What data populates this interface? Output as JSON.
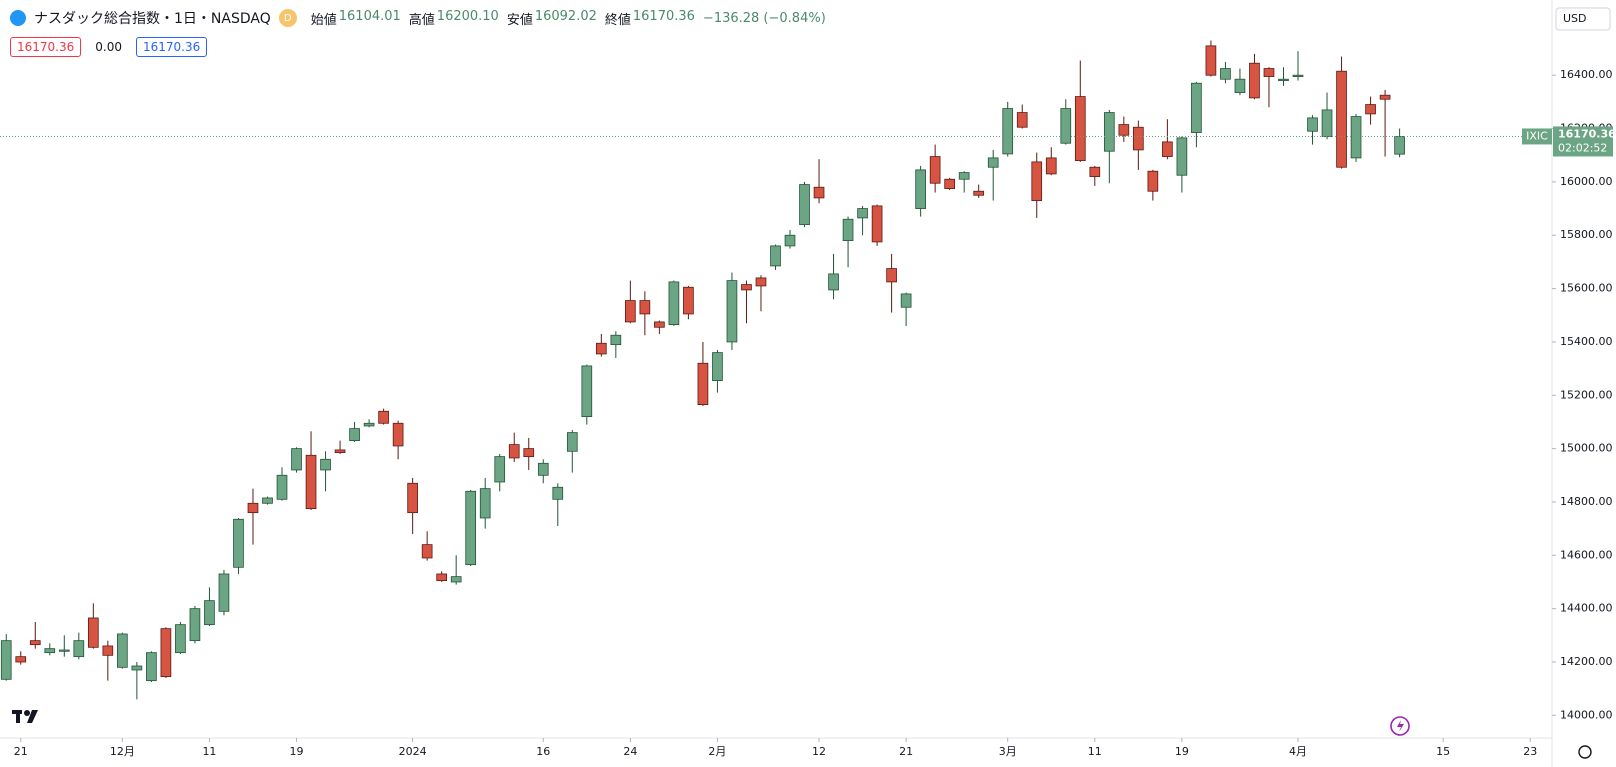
{
  "header": {
    "title": "ナスダック総合指数・1日・NASDAQ",
    "interval": "D",
    "ohlc": [
      {
        "label": "始値",
        "value": "16104.01"
      },
      {
        "label": "高値",
        "value": "16200.10"
      },
      {
        "label": "安値",
        "value": "16092.02"
      },
      {
        "label": "終値",
        "value": "16170.36"
      }
    ],
    "change": "−136.28 (−0.84%)",
    "price_boxes": [
      "16170.36",
      "0.00",
      "16170.36"
    ]
  },
  "currency": "USD",
  "symbol_tag": "IXIC",
  "price_tag": "16170.36",
  "countdown": "02:02:52",
  "chart_data": {
    "type": "candlestick",
    "up_color": "#6ba583",
    "down_color": "#d75442",
    "up_border": "#225437",
    "down_border": "#5b1a13",
    "grid": false,
    "open": [
      14135,
      14220,
      14280,
      14235,
      14240,
      14220,
      14365,
      14260,
      14180,
      14170,
      14130,
      14325,
      14235,
      14280,
      14340,
      14390,
      14555,
      14795,
      14795,
      14810,
      14920,
      14975,
      14920,
      14995,
      15030,
      15085,
      15140,
      15095,
      14870,
      14640,
      14530,
      14500,
      14565,
      14740,
      14875,
      15015,
      15000,
      14900,
      14810,
      14990,
      15120,
      15395,
      15390,
      15555,
      15555,
      15475,
      15465,
      15605,
      15320,
      15255,
      15400,
      15615,
      15640,
      15685,
      15760,
      15840,
      15980,
      15595,
      15780,
      15865,
      15910,
      15675,
      15530,
      15900,
      16095,
      16010,
      16010,
      15965,
      16055,
      16105,
      16260,
      16075,
      16090,
      16145,
      16320,
      16055,
      16115,
      16215,
      16205,
      16040,
      16150,
      16025,
      16185,
      16510,
      16385,
      16335,
      16445,
      16425,
      16380,
      16395,
      16190,
      16170,
      16415,
      16090,
      16290,
      16325,
      16104.01
    ],
    "high": [
      14305,
      14240,
      14350,
      14270,
      14300,
      14310,
      14420,
      14280,
      14310,
      14200,
      14240,
      14330,
      14350,
      14410,
      14480,
      14545,
      14740,
      14850,
      14820,
      14930,
      15005,
      15065,
      14990,
      15030,
      15100,
      15110,
      15150,
      15105,
      14890,
      14690,
      14540,
      14600,
      14845,
      14890,
      14980,
      15060,
      15040,
      14960,
      14870,
      15070,
      15315,
      15430,
      15440,
      15630,
      15590,
      15480,
      15630,
      15610,
      15400,
      15370,
      15660,
      15630,
      15650,
      15765,
      15820,
      16000,
      16085,
      15730,
      15870,
      15910,
      15915,
      15730,
      15585,
      16060,
      16140,
      16015,
      16040,
      15990,
      16120,
      16300,
      16290,
      16110,
      16130,
      16310,
      16455,
      16060,
      16270,
      16245,
      16230,
      16045,
      16235,
      16170,
      16375,
      16530,
      16450,
      16425,
      16480,
      16430,
      16430,
      16490,
      16250,
      16335,
      16470,
      16255,
      16320,
      16345,
      16200.1
    ],
    "low": [
      14130,
      14190,
      14250,
      14225,
      14220,
      14210,
      14250,
      14130,
      14175,
      14060,
      14125,
      14140,
      14230,
      14270,
      14335,
      14375,
      14530,
      14640,
      14790,
      14805,
      14910,
      14770,
      14840,
      14980,
      15025,
      15080,
      15090,
      14960,
      14680,
      14580,
      14500,
      14490,
      14560,
      14700,
      14840,
      14950,
      14920,
      14870,
      14710,
      14910,
      15090,
      15345,
      15340,
      15470,
      15425,
      15430,
      15460,
      15485,
      15160,
      15210,
      15370,
      15470,
      15515,
      15670,
      15750,
      15830,
      15920,
      15560,
      15680,
      15800,
      15760,
      15510,
      15460,
      15870,
      15960,
      15970,
      15960,
      15940,
      15930,
      16095,
      16200,
      15865,
      16025,
      16140,
      16075,
      15985,
      15995,
      16150,
      16045,
      15930,
      16085,
      15960,
      16130,
      16395,
      16370,
      16325,
      16310,
      16280,
      16360,
      16380,
      16140,
      16160,
      16050,
      16075,
      16215,
      16095,
      16092.02
    ],
    "close": [
      14280,
      14200,
      14265,
      14250,
      14245,
      14280,
      14255,
      14225,
      14305,
      14185,
      14235,
      14145,
      14340,
      14400,
      14430,
      14530,
      14735,
      14760,
      14815,
      14900,
      15000,
      14775,
      14960,
      14985,
      15075,
      15095,
      15095,
      15010,
      14760,
      14590,
      14505,
      14520,
      14840,
      14850,
      14970,
      14965,
      14970,
      14945,
      14855,
      15060,
      15310,
      15355,
      15425,
      15475,
      15505,
      15455,
      15625,
      15505,
      15165,
      15360,
      15630,
      15595,
      15610,
      15760,
      15800,
      15990,
      15940,
      15655,
      15860,
      15900,
      15775,
      15625,
      15580,
      16045,
      15995,
      15975,
      16035,
      15950,
      16090,
      16275,
      16205,
      15930,
      16030,
      16275,
      16080,
      16020,
      16260,
      16175,
      16120,
      15965,
      16095,
      16165,
      16370,
      16400,
      16425,
      16385,
      16315,
      16395,
      16385,
      16400,
      16240,
      16270,
      16055,
      16245,
      16255,
      16310,
      16170.36
    ],
    "xlim": [
      -0.43,
      106.5
    ],
    "ylim": [
      13915,
      16682
    ],
    "yticks": [
      {
        "value": 14000,
        "label": "14000.00"
      },
      {
        "value": 14200,
        "label": "14200.00"
      },
      {
        "value": 14400,
        "label": "14400.00"
      },
      {
        "value": 14600,
        "label": "14600.00"
      },
      {
        "value": 14800,
        "label": "14800.00"
      },
      {
        "value": 15000,
        "label": "15000.00"
      },
      {
        "value": 15200,
        "label": "15200.00"
      },
      {
        "value": 15400,
        "label": "15400.00"
      },
      {
        "value": 15600,
        "label": "15600.00"
      },
      {
        "value": 15800,
        "label": "15800.00"
      },
      {
        "value": 16000,
        "label": "16000.00"
      },
      {
        "value": 16200,
        "label": "16200.00"
      },
      {
        "value": 16400,
        "label": "16400.00"
      }
    ],
    "xticks": [
      {
        "value": 1,
        "label": "21"
      },
      {
        "value": 8,
        "label": "12月"
      },
      {
        "value": 14,
        "label": "11"
      },
      {
        "value": 20,
        "label": "19"
      },
      {
        "value": 28,
        "label": "2024"
      },
      {
        "value": 37,
        "label": "16"
      },
      {
        "value": 43,
        "label": "24"
      },
      {
        "value": 49,
        "label": "2月"
      },
      {
        "value": 56,
        "label": "12"
      },
      {
        "value": 62,
        "label": "21"
      },
      {
        "value": 69,
        "label": "3月"
      },
      {
        "value": 75,
        "label": "11"
      },
      {
        "value": 81,
        "label": "19"
      },
      {
        "value": 89,
        "label": "4月"
      },
      {
        "value": 99,
        "label": "15"
      },
      {
        "value": 105,
        "label": "23"
      }
    ]
  }
}
